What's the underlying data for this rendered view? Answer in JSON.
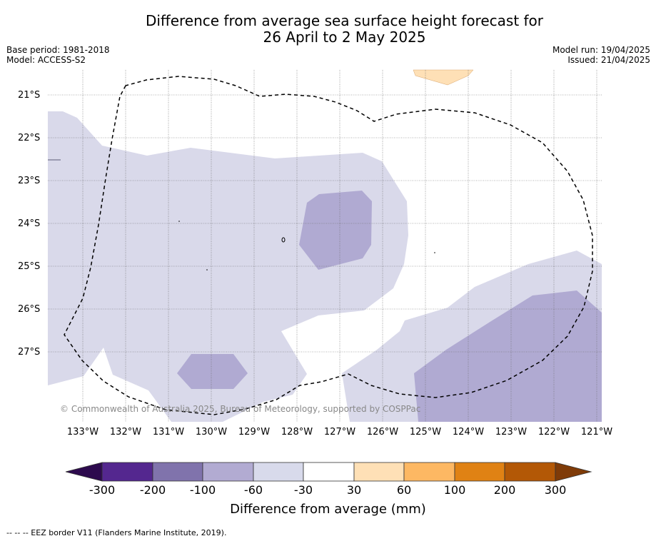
{
  "header": {
    "title_line1": "Difference from average sea surface height forecast for",
    "title_line2": "26 April to 2 May 2025",
    "base_period": "Base period: 1981-2018",
    "model": "Model: ACCESS-S2",
    "model_run": "Model run: 19/04/2025",
    "issued": "Issued: 21/04/2025"
  },
  "map": {
    "lat_labels": [
      "21°S",
      "22°S",
      "23°S",
      "24°S",
      "25°S",
      "26°S",
      "27°S"
    ],
    "lon_labels": [
      "133°W",
      "132°W",
      "131°W",
      "130°W",
      "129°W",
      "128°W",
      "127°W",
      "126°W",
      "125°W",
      "124°W",
      "123°W",
      "122°W",
      "121°W"
    ],
    "copyright": "© Commonwealth of Australia 2025, Bureau of Meteorology, supported by COSPPac",
    "colors": {
      "c_-60_-30": "#d9d9ea",
      "c_-100_-60": "#b0aad2",
      "c_30_60": "#fee0b6",
      "eez_line": "#000000"
    }
  },
  "colorbar": {
    "tick_labels": [
      "-300",
      "-200",
      "-100",
      "-60",
      "-30",
      "30",
      "60",
      "100",
      "200",
      "300"
    ],
    "title": "Difference from average (mm)",
    "colors": [
      "#2d0a4e",
      "#54278f",
      "#8073ac",
      "#b2abd2",
      "#d8daeb",
      "#ffffff",
      "#fee0b6",
      "#fdb863",
      "#e08214",
      "#b35806",
      "#7f3b08"
    ]
  },
  "footer": {
    "eez_note": "--  --  -- EEZ border V11 (Flanders Marine Institute, 2019)."
  }
}
